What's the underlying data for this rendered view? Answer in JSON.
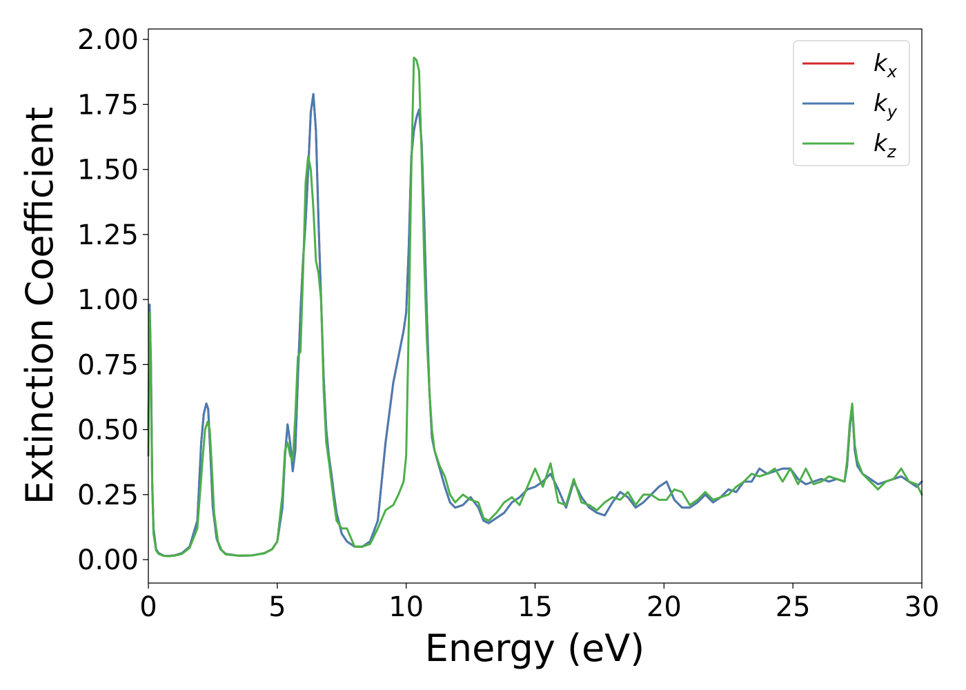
{
  "chart_data": {
    "type": "line",
    "title": "",
    "xlabel": "Energy (eV)",
    "ylabel": "Extinction Coefficient",
    "xlim": [
      0,
      30
    ],
    "ylim": [
      -0.09,
      2.04
    ],
    "xticks": [
      0,
      5,
      10,
      15,
      20,
      25,
      30
    ],
    "xtick_labels": [
      "0",
      "5",
      "10",
      "15",
      "20",
      "25",
      "30"
    ],
    "yticks": [
      0.0,
      0.25,
      0.5,
      0.75,
      1.0,
      1.25,
      1.5,
      1.75,
      2.0
    ],
    "ytick_labels": [
      "0.00",
      "0.25",
      "0.50",
      "0.75",
      "1.00",
      "1.25",
      "1.50",
      "1.75",
      "2.00"
    ],
    "grid": false,
    "legend_position": "top-right",
    "series": [
      {
        "name": "k_x",
        "label_base": "k",
        "label_sub": "x",
        "color": "#d62728",
        "x": [
          0,
          0.05,
          0.1,
          0.15,
          0.2,
          0.3,
          0.4,
          0.6,
          0.8,
          1.0,
          1.3,
          1.6,
          1.9,
          2.05,
          2.15,
          2.25,
          2.32,
          2.4,
          2.5,
          2.65,
          2.8,
          3.0,
          3.5,
          4.0,
          4.5,
          4.8,
          5.0,
          5.2,
          5.3,
          5.4,
          5.5,
          5.6,
          5.7,
          5.8,
          5.9,
          6.0,
          6.1,
          6.2,
          6.3,
          6.4,
          6.5,
          6.6,
          6.7,
          6.8,
          6.9,
          7.0,
          7.1,
          7.2,
          7.3,
          7.5,
          7.7,
          8.0,
          8.3,
          8.6,
          8.9,
          9.2,
          9.5,
          9.7,
          9.9,
          10.0,
          10.1,
          10.2,
          10.3,
          10.4,
          10.5,
          10.6,
          10.7,
          10.8,
          10.9,
          11.0,
          11.1,
          11.3,
          11.5,
          11.7,
          11.9,
          12.2,
          12.5,
          12.8,
          13.0,
          13.2,
          13.5,
          13.8,
          14.1,
          14.4,
          14.7,
          15.0,
          15.3,
          15.6,
          15.9,
          16.2,
          16.5,
          16.8,
          17.1,
          17.4,
          17.7,
          18.0,
          18.3,
          18.6,
          18.9,
          19.2,
          19.5,
          19.8,
          20.1,
          20.4,
          20.7,
          21.0,
          21.3,
          21.6,
          21.9,
          22.2,
          22.5,
          22.8,
          23.1,
          23.4,
          23.7,
          24.0,
          24.3,
          24.6,
          24.9,
          25.2,
          25.5,
          25.8,
          26.1,
          26.4,
          26.7,
          27.0,
          27.1,
          27.2,
          27.3,
          27.4,
          27.5,
          27.7,
          28.0,
          28.3,
          28.6,
          28.9,
          29.2,
          29.5,
          29.8,
          30.0
        ],
        "y": [
          0.5,
          0.98,
          0.75,
          0.3,
          0.12,
          0.04,
          0.025,
          0.015,
          0.014,
          0.016,
          0.025,
          0.05,
          0.15,
          0.45,
          0.56,
          0.6,
          0.58,
          0.42,
          0.2,
          0.08,
          0.04,
          0.022,
          0.015,
          0.016,
          0.025,
          0.04,
          0.07,
          0.2,
          0.4,
          0.52,
          0.45,
          0.34,
          0.42,
          0.7,
          0.95,
          1.15,
          1.3,
          1.5,
          1.72,
          1.79,
          1.65,
          1.3,
          1.0,
          0.7,
          0.5,
          0.4,
          0.33,
          0.25,
          0.18,
          0.1,
          0.07,
          0.05,
          0.05,
          0.07,
          0.15,
          0.45,
          0.68,
          0.78,
          0.88,
          0.95,
          1.2,
          1.55,
          1.65,
          1.7,
          1.73,
          1.6,
          1.3,
          0.95,
          0.65,
          0.47,
          0.42,
          0.35,
          0.28,
          0.22,
          0.2,
          0.21,
          0.24,
          0.2,
          0.15,
          0.14,
          0.16,
          0.18,
          0.22,
          0.24,
          0.27,
          0.28,
          0.3,
          0.33,
          0.27,
          0.2,
          0.3,
          0.24,
          0.2,
          0.18,
          0.17,
          0.22,
          0.26,
          0.24,
          0.2,
          0.22,
          0.25,
          0.28,
          0.3,
          0.23,
          0.2,
          0.2,
          0.22,
          0.25,
          0.22,
          0.24,
          0.27,
          0.26,
          0.3,
          0.3,
          0.35,
          0.33,
          0.34,
          0.35,
          0.35,
          0.31,
          0.29,
          0.3,
          0.31,
          0.3,
          0.31,
          0.3,
          0.36,
          0.5,
          0.59,
          0.42,
          0.36,
          0.33,
          0.31,
          0.29,
          0.3,
          0.31,
          0.32,
          0.3,
          0.28,
          0.3
        ]
      },
      {
        "name": "k_y",
        "label_base": "k",
        "label_sub": "y",
        "color": "#4a7bb0",
        "x": [
          0,
          0.05,
          0.1,
          0.15,
          0.2,
          0.3,
          0.4,
          0.6,
          0.8,
          1.0,
          1.3,
          1.6,
          1.9,
          2.05,
          2.15,
          2.25,
          2.32,
          2.4,
          2.5,
          2.65,
          2.8,
          3.0,
          3.5,
          4.0,
          4.5,
          4.8,
          5.0,
          5.2,
          5.3,
          5.4,
          5.5,
          5.6,
          5.7,
          5.8,
          5.9,
          6.0,
          6.1,
          6.2,
          6.3,
          6.4,
          6.5,
          6.6,
          6.7,
          6.8,
          6.9,
          7.0,
          7.1,
          7.2,
          7.3,
          7.5,
          7.7,
          8.0,
          8.3,
          8.6,
          8.9,
          9.2,
          9.5,
          9.7,
          9.9,
          10.0,
          10.1,
          10.2,
          10.3,
          10.4,
          10.5,
          10.6,
          10.7,
          10.8,
          10.9,
          11.0,
          11.1,
          11.3,
          11.5,
          11.7,
          11.9,
          12.2,
          12.5,
          12.8,
          13.0,
          13.2,
          13.5,
          13.8,
          14.1,
          14.4,
          14.7,
          15.0,
          15.3,
          15.6,
          15.9,
          16.2,
          16.5,
          16.8,
          17.1,
          17.4,
          17.7,
          18.0,
          18.3,
          18.6,
          18.9,
          19.2,
          19.5,
          19.8,
          20.1,
          20.4,
          20.7,
          21.0,
          21.3,
          21.6,
          21.9,
          22.2,
          22.5,
          22.8,
          23.1,
          23.4,
          23.7,
          24.0,
          24.3,
          24.6,
          24.9,
          25.2,
          25.5,
          25.8,
          26.1,
          26.4,
          26.7,
          27.0,
          27.1,
          27.2,
          27.3,
          27.4,
          27.5,
          27.7,
          28.0,
          28.3,
          28.6,
          28.9,
          29.2,
          29.5,
          29.8,
          30.0
        ],
        "y": [
          0.5,
          0.98,
          0.75,
          0.3,
          0.12,
          0.04,
          0.025,
          0.015,
          0.014,
          0.016,
          0.025,
          0.05,
          0.15,
          0.45,
          0.56,
          0.6,
          0.58,
          0.42,
          0.2,
          0.08,
          0.04,
          0.022,
          0.015,
          0.016,
          0.025,
          0.04,
          0.07,
          0.2,
          0.4,
          0.52,
          0.45,
          0.34,
          0.42,
          0.7,
          0.95,
          1.15,
          1.3,
          1.5,
          1.72,
          1.79,
          1.65,
          1.3,
          1.0,
          0.7,
          0.5,
          0.4,
          0.33,
          0.25,
          0.18,
          0.1,
          0.07,
          0.05,
          0.05,
          0.07,
          0.15,
          0.45,
          0.68,
          0.78,
          0.88,
          0.95,
          1.2,
          1.55,
          1.65,
          1.7,
          1.73,
          1.6,
          1.3,
          0.95,
          0.65,
          0.47,
          0.42,
          0.35,
          0.28,
          0.22,
          0.2,
          0.21,
          0.24,
          0.2,
          0.15,
          0.14,
          0.16,
          0.18,
          0.22,
          0.24,
          0.27,
          0.28,
          0.3,
          0.33,
          0.27,
          0.2,
          0.3,
          0.24,
          0.2,
          0.18,
          0.17,
          0.22,
          0.26,
          0.24,
          0.2,
          0.22,
          0.25,
          0.28,
          0.3,
          0.23,
          0.2,
          0.2,
          0.22,
          0.25,
          0.22,
          0.24,
          0.27,
          0.26,
          0.3,
          0.3,
          0.35,
          0.33,
          0.34,
          0.35,
          0.35,
          0.31,
          0.29,
          0.3,
          0.31,
          0.3,
          0.31,
          0.3,
          0.36,
          0.5,
          0.59,
          0.42,
          0.36,
          0.33,
          0.31,
          0.29,
          0.3,
          0.31,
          0.32,
          0.3,
          0.28,
          0.3
        ]
      },
      {
        "name": "k_z",
        "label_base": "k",
        "label_sub": "z",
        "color": "#4daf4a",
        "x": [
          0,
          0.05,
          0.1,
          0.15,
          0.2,
          0.3,
          0.4,
          0.6,
          0.8,
          1.0,
          1.3,
          1.6,
          1.9,
          2.1,
          2.2,
          2.3,
          2.38,
          2.45,
          2.55,
          2.7,
          2.85,
          3.0,
          3.5,
          4.0,
          4.5,
          4.8,
          5.0,
          5.2,
          5.3,
          5.4,
          5.5,
          5.6,
          5.7,
          5.8,
          5.9,
          6.0,
          6.1,
          6.2,
          6.3,
          6.4,
          6.5,
          6.6,
          6.7,
          6.8,
          6.9,
          7.0,
          7.1,
          7.2,
          7.3,
          7.5,
          7.7,
          8.0,
          8.3,
          8.6,
          8.9,
          9.2,
          9.5,
          9.7,
          9.9,
          10.0,
          10.1,
          10.2,
          10.3,
          10.4,
          10.5,
          10.6,
          10.7,
          10.8,
          10.9,
          11.0,
          11.1,
          11.3,
          11.5,
          11.7,
          11.9,
          12.2,
          12.5,
          12.8,
          13.0,
          13.2,
          13.5,
          13.8,
          14.1,
          14.4,
          14.7,
          15.0,
          15.3,
          15.6,
          15.9,
          16.2,
          16.5,
          16.8,
          17.1,
          17.4,
          17.7,
          18.0,
          18.3,
          18.6,
          18.9,
          19.2,
          19.5,
          19.8,
          20.1,
          20.4,
          20.7,
          21.0,
          21.3,
          21.6,
          21.9,
          22.2,
          22.5,
          22.8,
          23.1,
          23.4,
          23.7,
          24.0,
          24.3,
          24.6,
          24.9,
          25.2,
          25.5,
          25.8,
          26.1,
          26.4,
          26.7,
          27.0,
          27.1,
          27.2,
          27.3,
          27.4,
          27.5,
          27.7,
          28.0,
          28.3,
          28.6,
          28.9,
          29.2,
          29.5,
          29.8,
          30.0
        ],
        "y": [
          0.4,
          0.95,
          0.7,
          0.28,
          0.1,
          0.035,
          0.022,
          0.014,
          0.013,
          0.015,
          0.022,
          0.045,
          0.12,
          0.38,
          0.5,
          0.53,
          0.5,
          0.38,
          0.18,
          0.07,
          0.035,
          0.02,
          0.015,
          0.016,
          0.024,
          0.04,
          0.07,
          0.25,
          0.42,
          0.45,
          0.4,
          0.38,
          0.55,
          0.78,
          0.8,
          1.1,
          1.45,
          1.55,
          1.5,
          1.35,
          1.15,
          1.1,
          1.0,
          0.65,
          0.45,
          0.38,
          0.3,
          0.22,
          0.15,
          0.12,
          0.12,
          0.05,
          0.05,
          0.06,
          0.12,
          0.19,
          0.21,
          0.25,
          0.3,
          0.4,
          0.9,
          1.5,
          1.93,
          1.92,
          1.88,
          1.55,
          1.15,
          0.85,
          0.65,
          0.5,
          0.42,
          0.36,
          0.32,
          0.25,
          0.22,
          0.25,
          0.23,
          0.22,
          0.16,
          0.15,
          0.18,
          0.22,
          0.24,
          0.21,
          0.28,
          0.35,
          0.28,
          0.37,
          0.22,
          0.21,
          0.31,
          0.22,
          0.21,
          0.19,
          0.22,
          0.24,
          0.23,
          0.26,
          0.21,
          0.25,
          0.25,
          0.23,
          0.23,
          0.27,
          0.26,
          0.21,
          0.23,
          0.26,
          0.23,
          0.24,
          0.25,
          0.28,
          0.3,
          0.33,
          0.32,
          0.33,
          0.35,
          0.3,
          0.35,
          0.29,
          0.35,
          0.29,
          0.3,
          0.32,
          0.31,
          0.3,
          0.38,
          0.52,
          0.6,
          0.44,
          0.38,
          0.33,
          0.3,
          0.27,
          0.3,
          0.31,
          0.35,
          0.3,
          0.29,
          0.25
        ]
      }
    ]
  }
}
